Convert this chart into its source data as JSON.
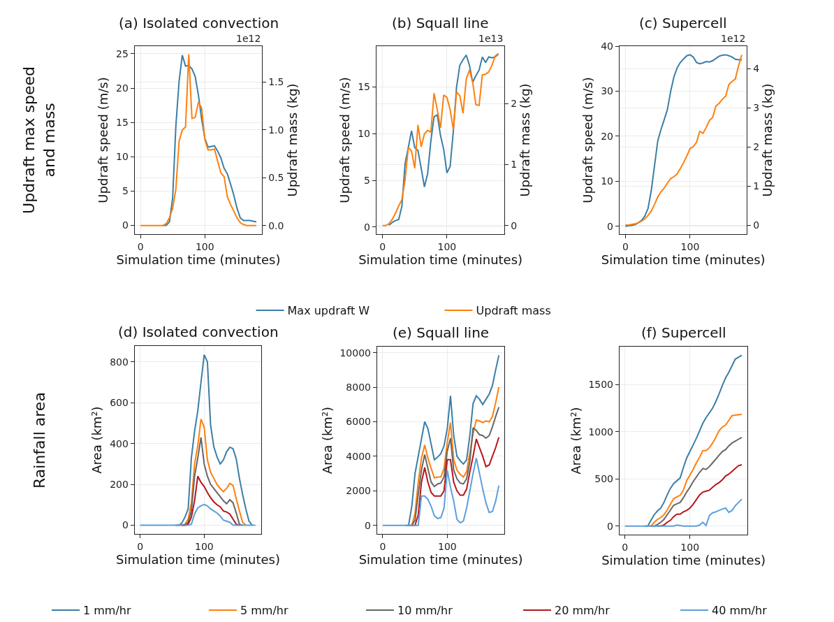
{
  "chart_data": [
    {
      "type": "line",
      "title": "(a) Isolated convection",
      "xlabel": "Simulation time (minutes)",
      "ylabel": "Updraft speed (m/s)",
      "y2label": "Updraft mass (kg)",
      "x": [
        0,
        5,
        10,
        15,
        20,
        25,
        30,
        35,
        40,
        45,
        50,
        55,
        60,
        65,
        70,
        75,
        80,
        85,
        90,
        95,
        100,
        105,
        110,
        115,
        120,
        125,
        130,
        135,
        140,
        145,
        150,
        155,
        160,
        165,
        170,
        175,
        180
      ],
      "series": [
        {
          "name": "Max updraft W",
          "color": "#3a7ea6",
          "values": [
            null,
            null,
            null,
            null,
            null,
            null,
            null,
            0,
            0,
            0.5,
            4,
            14.5,
            21,
            24.8,
            23.2,
            23.3,
            22.8,
            21.7,
            19,
            15.5,
            12.7,
            11.4,
            11.5,
            11.6,
            10.8,
            9.8,
            8.3,
            7.5,
            6,
            4.4,
            2.5,
            1.1,
            0.7,
            0.7,
            0.7,
            0.6,
            0.5
          ]
        },
        {
          "name": "Updraft mass",
          "color": "#ff7f0e",
          "axis": "y2",
          "values": [
            0,
            0,
            0,
            0,
            0,
            0,
            0,
            0,
            0.02,
            0.08,
            0.18,
            0.38,
            0.88,
            1.0,
            1.03,
            1.79,
            1.12,
            1.13,
            1.29,
            1.23,
            0.9,
            0.79,
            0.79,
            0.8,
            0.67,
            0.55,
            0.51,
            0.3,
            0.22,
            0.15,
            0.08,
            0.03,
            0.01,
            0,
            0,
            0,
            0
          ]
        }
      ],
      "xlim": [
        -9,
        189
      ],
      "xticks": [
        0,
        100
      ],
      "ylim": [
        -1.25,
        26.1
      ],
      "yticks": [
        0,
        5,
        10,
        15,
        20,
        25
      ],
      "y2lim": [
        -0.088,
        1.875
      ],
      "y2ticks": [
        {
          "value": 0,
          "label": "0.0"
        },
        0.5,
        {
          "value": 1,
          "label": "1.0"
        },
        1.5
      ],
      "annotations": [
        "1e12",
        "Updraft max speed\nand mass"
      ],
      "grid": true,
      "legend": "bottom"
    },
    {
      "type": "line",
      "title": "(b) Squall line",
      "xlabel": "Simulation time (minutes)",
      "ylabel": "Updraft speed (m/s)",
      "y2label": "Updraft mass (kg)",
      "x": [
        0,
        5,
        10,
        15,
        20,
        25,
        30,
        35,
        40,
        45,
        50,
        55,
        60,
        65,
        70,
        75,
        80,
        85,
        90,
        95,
        100,
        105,
        110,
        115,
        120,
        125,
        130,
        135,
        140,
        145,
        150,
        155,
        160,
        165,
        170,
        175,
        180
      ],
      "series": [
        {
          "color": "#3a7ea6",
          "values": [
            null,
            null,
            0.2,
            0.5,
            0.7,
            0.8,
            2.2,
            6.8,
            8.5,
            10.3,
            8.5,
            8.2,
            6.3,
            4.3,
            5.7,
            9.2,
            11.8,
            12.0,
            9.8,
            8.3,
            5.8,
            6.5,
            10.3,
            15,
            17.3,
            17.9,
            18.4,
            17.3,
            15.5,
            16.2,
            16.8,
            18.2,
            17.6,
            18.2,
            18.1,
            18.2,
            18.5
          ]
        },
        {
          "color": "#ff7f0e",
          "axis": "y2",
          "values": [
            0,
            0,
            0.03,
            0.1,
            0.2,
            0.32,
            0.42,
            0.75,
            1.28,
            1.22,
            0.94,
            1.65,
            1.29,
            1.5,
            1.56,
            1.53,
            2.17,
            1.9,
            1.6,
            2.14,
            2.1,
            1.9,
            1.57,
            2.19,
            2.13,
            1.84,
            2.4,
            2.55,
            2.35,
            1.98,
            1.97,
            2.47,
            2.48,
            2.52,
            2.63,
            2.78,
            2.82
          ]
        }
      ],
      "xlim": [
        -9.5,
        189.5
      ],
      "xticks": [
        0,
        100
      ],
      "ylim": [
        -0.73,
        19.34
      ],
      "yticks": [
        0,
        5,
        10,
        15
      ],
      "y2lim": [
        -0.138,
        2.94
      ],
      "y2ticks": [
        0,
        1,
        2
      ],
      "annotations": [
        "1e13"
      ],
      "grid": true
    },
    {
      "type": "line",
      "title": "(c) Supercell",
      "xlabel": "Simulation time (minutes)",
      "ylabel": "Updraft speed (m/s)",
      "y2label": "Updraft mass (kg)",
      "x": [
        0,
        5,
        10,
        15,
        20,
        25,
        30,
        35,
        40,
        45,
        50,
        55,
        60,
        65,
        70,
        75,
        80,
        85,
        90,
        95,
        100,
        105,
        110,
        115,
        120,
        125,
        130,
        135,
        140,
        145,
        150,
        155,
        160,
        165,
        170,
        175,
        180
      ],
      "series": [
        {
          "color": "#3a7ea6",
          "values": [
            0,
            0.1,
            0.2,
            0.4,
            0.8,
            1.3,
            2.3,
            4,
            8,
            13.5,
            19,
            21.5,
            23.7,
            26,
            30,
            33.2,
            35.2,
            36.4,
            37.2,
            37.9,
            38.1,
            37.6,
            36.4,
            36.1,
            36.3,
            36.6,
            36.5,
            36.8,
            37.3,
            37.8,
            38.0,
            38.1,
            37.9,
            37.6,
            37.1,
            37.0,
            37.0
          ]
        },
        {
          "color": "#ff7f0e",
          "axis": "y2",
          "values": [
            0,
            0,
            0.02,
            0.03,
            0.06,
            0.1,
            0.16,
            0.25,
            0.36,
            0.53,
            0.72,
            0.85,
            0.95,
            1.08,
            1.19,
            1.24,
            1.31,
            1.45,
            1.6,
            1.77,
            1.96,
            2.01,
            2.12,
            2.4,
            2.35,
            2.5,
            2.68,
            2.76,
            3.05,
            3.12,
            3.22,
            3.3,
            3.6,
            3.68,
            3.74,
            4.08,
            4.36
          ]
        }
      ],
      "xlim": [
        -9.2,
        188
      ],
      "xticks": [
        0,
        100
      ],
      "ylim": [
        -1.7,
        40
      ],
      "yticks": [
        0,
        10,
        20,
        30,
        40
      ],
      "y2lim": [
        -0.227,
        4.58
      ],
      "y2ticks": [
        0,
        1,
        2,
        3,
        4
      ],
      "annotations": [
        "1e12"
      ],
      "grid": true
    },
    {
      "type": "line",
      "title": "(d) Isolated convection",
      "xlabel": "Simulation time (minutes)",
      "ylabel": "Area (km²)",
      "x": [
        0,
        5,
        10,
        15,
        20,
        25,
        30,
        35,
        40,
        45,
        50,
        55,
        60,
        65,
        70,
        75,
        80,
        85,
        90,
        95,
        100,
        105,
        110,
        115,
        120,
        125,
        130,
        135,
        140,
        145,
        150,
        155,
        160,
        165,
        170,
        175,
        180
      ],
      "series": [
        {
          "name": "1 mm/hr",
          "color": "#3a7ea6",
          "values": [
            null,
            null,
            null,
            null,
            null,
            null,
            null,
            null,
            null,
            null,
            null,
            0,
            0,
            10,
            40,
            80,
            330,
            460,
            560,
            700,
            835,
            800,
            490,
            385,
            335,
            300,
            320,
            360,
            382,
            375,
            325,
            230,
            150,
            80,
            20,
            0,
            null
          ]
        },
        {
          "name": "5 mm/hr",
          "color": "#ff7f0e",
          "values": [
            null,
            null,
            null,
            null,
            null,
            null,
            null,
            null,
            null,
            null,
            null,
            null,
            0,
            0,
            5,
            30,
            110,
            300,
            390,
            520,
            480,
            320,
            260,
            230,
            200,
            180,
            165,
            180,
            205,
            195,
            130,
            70,
            15,
            0,
            null,
            null,
            null
          ]
        },
        {
          "name": "10 mm/hr",
          "color": "#666666",
          "values": [
            null,
            null,
            null,
            null,
            null,
            null,
            null,
            null,
            null,
            null,
            null,
            null,
            null,
            0,
            0,
            15,
            70,
            240,
            330,
            430,
            300,
            240,
            200,
            180,
            160,
            140,
            120,
            105,
            125,
            110,
            60,
            5,
            0,
            null,
            null,
            null,
            null
          ]
        },
        {
          "name": "20 mm/hr",
          "color": "#b5161c",
          "values": [
            null,
            null,
            null,
            null,
            null,
            null,
            null,
            null,
            null,
            null,
            null,
            null,
            null,
            0,
            0,
            5,
            40,
            120,
            240,
            210,
            190,
            160,
            135,
            115,
            100,
            90,
            70,
            65,
            55,
            30,
            5,
            0,
            null,
            null,
            null,
            null,
            null
          ]
        },
        {
          "name": "40 mm/hr",
          "color": "#5b9fdc",
          "values": [
            0,
            0,
            0,
            0,
            0,
            0,
            0,
            0,
            0,
            0,
            0,
            0,
            0,
            0,
            0,
            0,
            5,
            55,
            85,
            95,
            102,
            95,
            80,
            70,
            60,
            45,
            25,
            20,
            15,
            0,
            0,
            0,
            0,
            0,
            0,
            0,
            0
          ]
        }
      ],
      "xlim": [
        -8.5,
        189.4
      ],
      "xticks": [
        0,
        100
      ],
      "ylim": [
        -42,
        877
      ],
      "yticks": [
        0,
        200,
        400,
        600,
        800
      ],
      "annotations": [
        "Rainfall area"
      ],
      "grid": true,
      "legend": "bottom"
    },
    {
      "type": "line",
      "title": "(e) Squall line",
      "xlabel": "Simulation time (minutes)",
      "ylabel": "Area (km²)",
      "x": [
        0,
        5,
        10,
        15,
        20,
        25,
        30,
        35,
        40,
        45,
        50,
        55,
        60,
        65,
        70,
        75,
        80,
        85,
        90,
        95,
        100,
        105,
        110,
        115,
        120,
        125,
        130,
        135,
        140,
        145,
        150,
        155,
        160,
        165,
        170,
        175,
        180
      ],
      "series": [
        {
          "color": "#3a7ea6",
          "values": [
            null,
            null,
            null,
            null,
            null,
            null,
            null,
            0,
            0,
            1100,
            3000,
            4000,
            5000,
            6000,
            5600,
            4700,
            3800,
            3950,
            4150,
            4600,
            5600,
            7500,
            5200,
            4000,
            3750,
            3550,
            3800,
            5200,
            7050,
            7500,
            7300,
            7000,
            7300,
            7600,
            8100,
            9000,
            9850
          ]
        },
        {
          "color": "#ff7f0e",
          "values": [
            null,
            null,
            null,
            null,
            null,
            null,
            null,
            null,
            0,
            0,
            700,
            2500,
            3900,
            4650,
            3900,
            3300,
            2750,
            2800,
            2800,
            3300,
            4800,
            5950,
            3800,
            3200,
            2950,
            2800,
            3100,
            4200,
            5300,
            6100,
            6050,
            5950,
            6050,
            6000,
            6300,
            7100,
            8000
          ]
        },
        {
          "color": "#666666",
          "values": [
            null,
            null,
            null,
            null,
            null,
            null,
            null,
            null,
            0,
            0,
            300,
            1800,
            3200,
            4100,
            3300,
            2500,
            2250,
            2400,
            2450,
            2800,
            4300,
            5050,
            3200,
            2700,
            2450,
            2400,
            2700,
            3700,
            5650,
            5500,
            5250,
            5200,
            5050,
            5200,
            5700,
            6300,
            6850
          ]
        },
        {
          "color": "#b5161c",
          "values": [
            null,
            null,
            null,
            null,
            null,
            null,
            null,
            null,
            null,
            0,
            0,
            600,
            2500,
            3350,
            2500,
            1900,
            1700,
            1700,
            1700,
            2000,
            3800,
            3800,
            2500,
            2000,
            1750,
            1750,
            2100,
            3100,
            4000,
            5000,
            4500,
            4000,
            3400,
            3500,
            4000,
            4500,
            5100
          ]
        },
        {
          "color": "#5b9fdc",
          "values": [
            0,
            0,
            0,
            0,
            0,
            0,
            0,
            0,
            0,
            0,
            0,
            0,
            1700,
            1700,
            1500,
            1100,
            550,
            400,
            450,
            1000,
            3200,
            2200,
            1400,
            350,
            150,
            250,
            1000,
            2000,
            3000,
            3900,
            3000,
            2100,
            1300,
            750,
            800,
            1400,
            2300
          ]
        }
      ],
      "xlim": [
        -8.8,
        188.8
      ],
      "xticks": [
        0,
        100
      ],
      "ylim": [
        -490,
        10340
      ],
      "yticks": [
        0,
        2000,
        4000,
        6000,
        8000,
        10000
      ],
      "grid": true
    },
    {
      "type": "line",
      "title": "(f) Supercell",
      "xlabel": "Simulation time (minutes)",
      "ylabel": "Area (km²)",
      "x": [
        0,
        5,
        10,
        15,
        20,
        25,
        30,
        35,
        40,
        45,
        50,
        55,
        60,
        65,
        70,
        75,
        80,
        85,
        90,
        95,
        100,
        105,
        110,
        115,
        120,
        125,
        130,
        135,
        140,
        145,
        150,
        155,
        160,
        165,
        170,
        175,
        180
      ],
      "series": [
        {
          "color": "#3a7ea6",
          "values": [
            null,
            null,
            null,
            null,
            null,
            null,
            0,
            0,
            60,
            120,
            160,
            190,
            250,
            330,
            400,
            450,
            480,
            510,
            620,
            720,
            790,
            860,
            930,
            1010,
            1090,
            1150,
            1200,
            1250,
            1320,
            1400,
            1490,
            1570,
            1630,
            1700,
            1770,
            1790,
            1810
          ]
        },
        {
          "color": "#ff7f0e",
          "values": [
            null,
            null,
            null,
            null,
            null,
            null,
            null,
            0,
            0,
            40,
            70,
            90,
            120,
            170,
            230,
            290,
            310,
            325,
            380,
            480,
            540,
            600,
            670,
            730,
            800,
            800,
            830,
            880,
            940,
            1010,
            1050,
            1070,
            1120,
            1170,
            1175,
            1180,
            1185
          ]
        },
        {
          "color": "#666666",
          "values": [
            null,
            null,
            null,
            null,
            null,
            null,
            null,
            null,
            0,
            0,
            15,
            40,
            70,
            120,
            170,
            220,
            235,
            250,
            300,
            360,
            410,
            470,
            520,
            570,
            610,
            600,
            630,
            670,
            710,
            750,
            790,
            810,
            850,
            880,
            900,
            920,
            940
          ]
        },
        {
          "color": "#b5161c",
          "values": [
            null,
            null,
            null,
            null,
            null,
            null,
            null,
            null,
            null,
            null,
            0,
            0,
            10,
            40,
            60,
            100,
            125,
            125,
            150,
            165,
            190,
            230,
            280,
            330,
            360,
            370,
            380,
            410,
            440,
            460,
            490,
            530,
            550,
            580,
            610,
            640,
            650
          ]
        },
        {
          "color": "#5b9fdc",
          "values": [
            0,
            0,
            0,
            0,
            0,
            0,
            0,
            0,
            0,
            0,
            0,
            0,
            0,
            0,
            0,
            0,
            10,
            5,
            0,
            0,
            0,
            0,
            0,
            10,
            40,
            5,
            110,
            140,
            150,
            165,
            180,
            190,
            145,
            165,
            215,
            250,
            285
          ]
        }
      ],
      "xlim": [
        -8.5,
        189
      ],
      "xticks": [
        0,
        100
      ],
      "ylim": [
        -90,
        1900
      ],
      "yticks": [
        0,
        500,
        1000,
        1500
      ],
      "grid": true
    }
  ]
}
